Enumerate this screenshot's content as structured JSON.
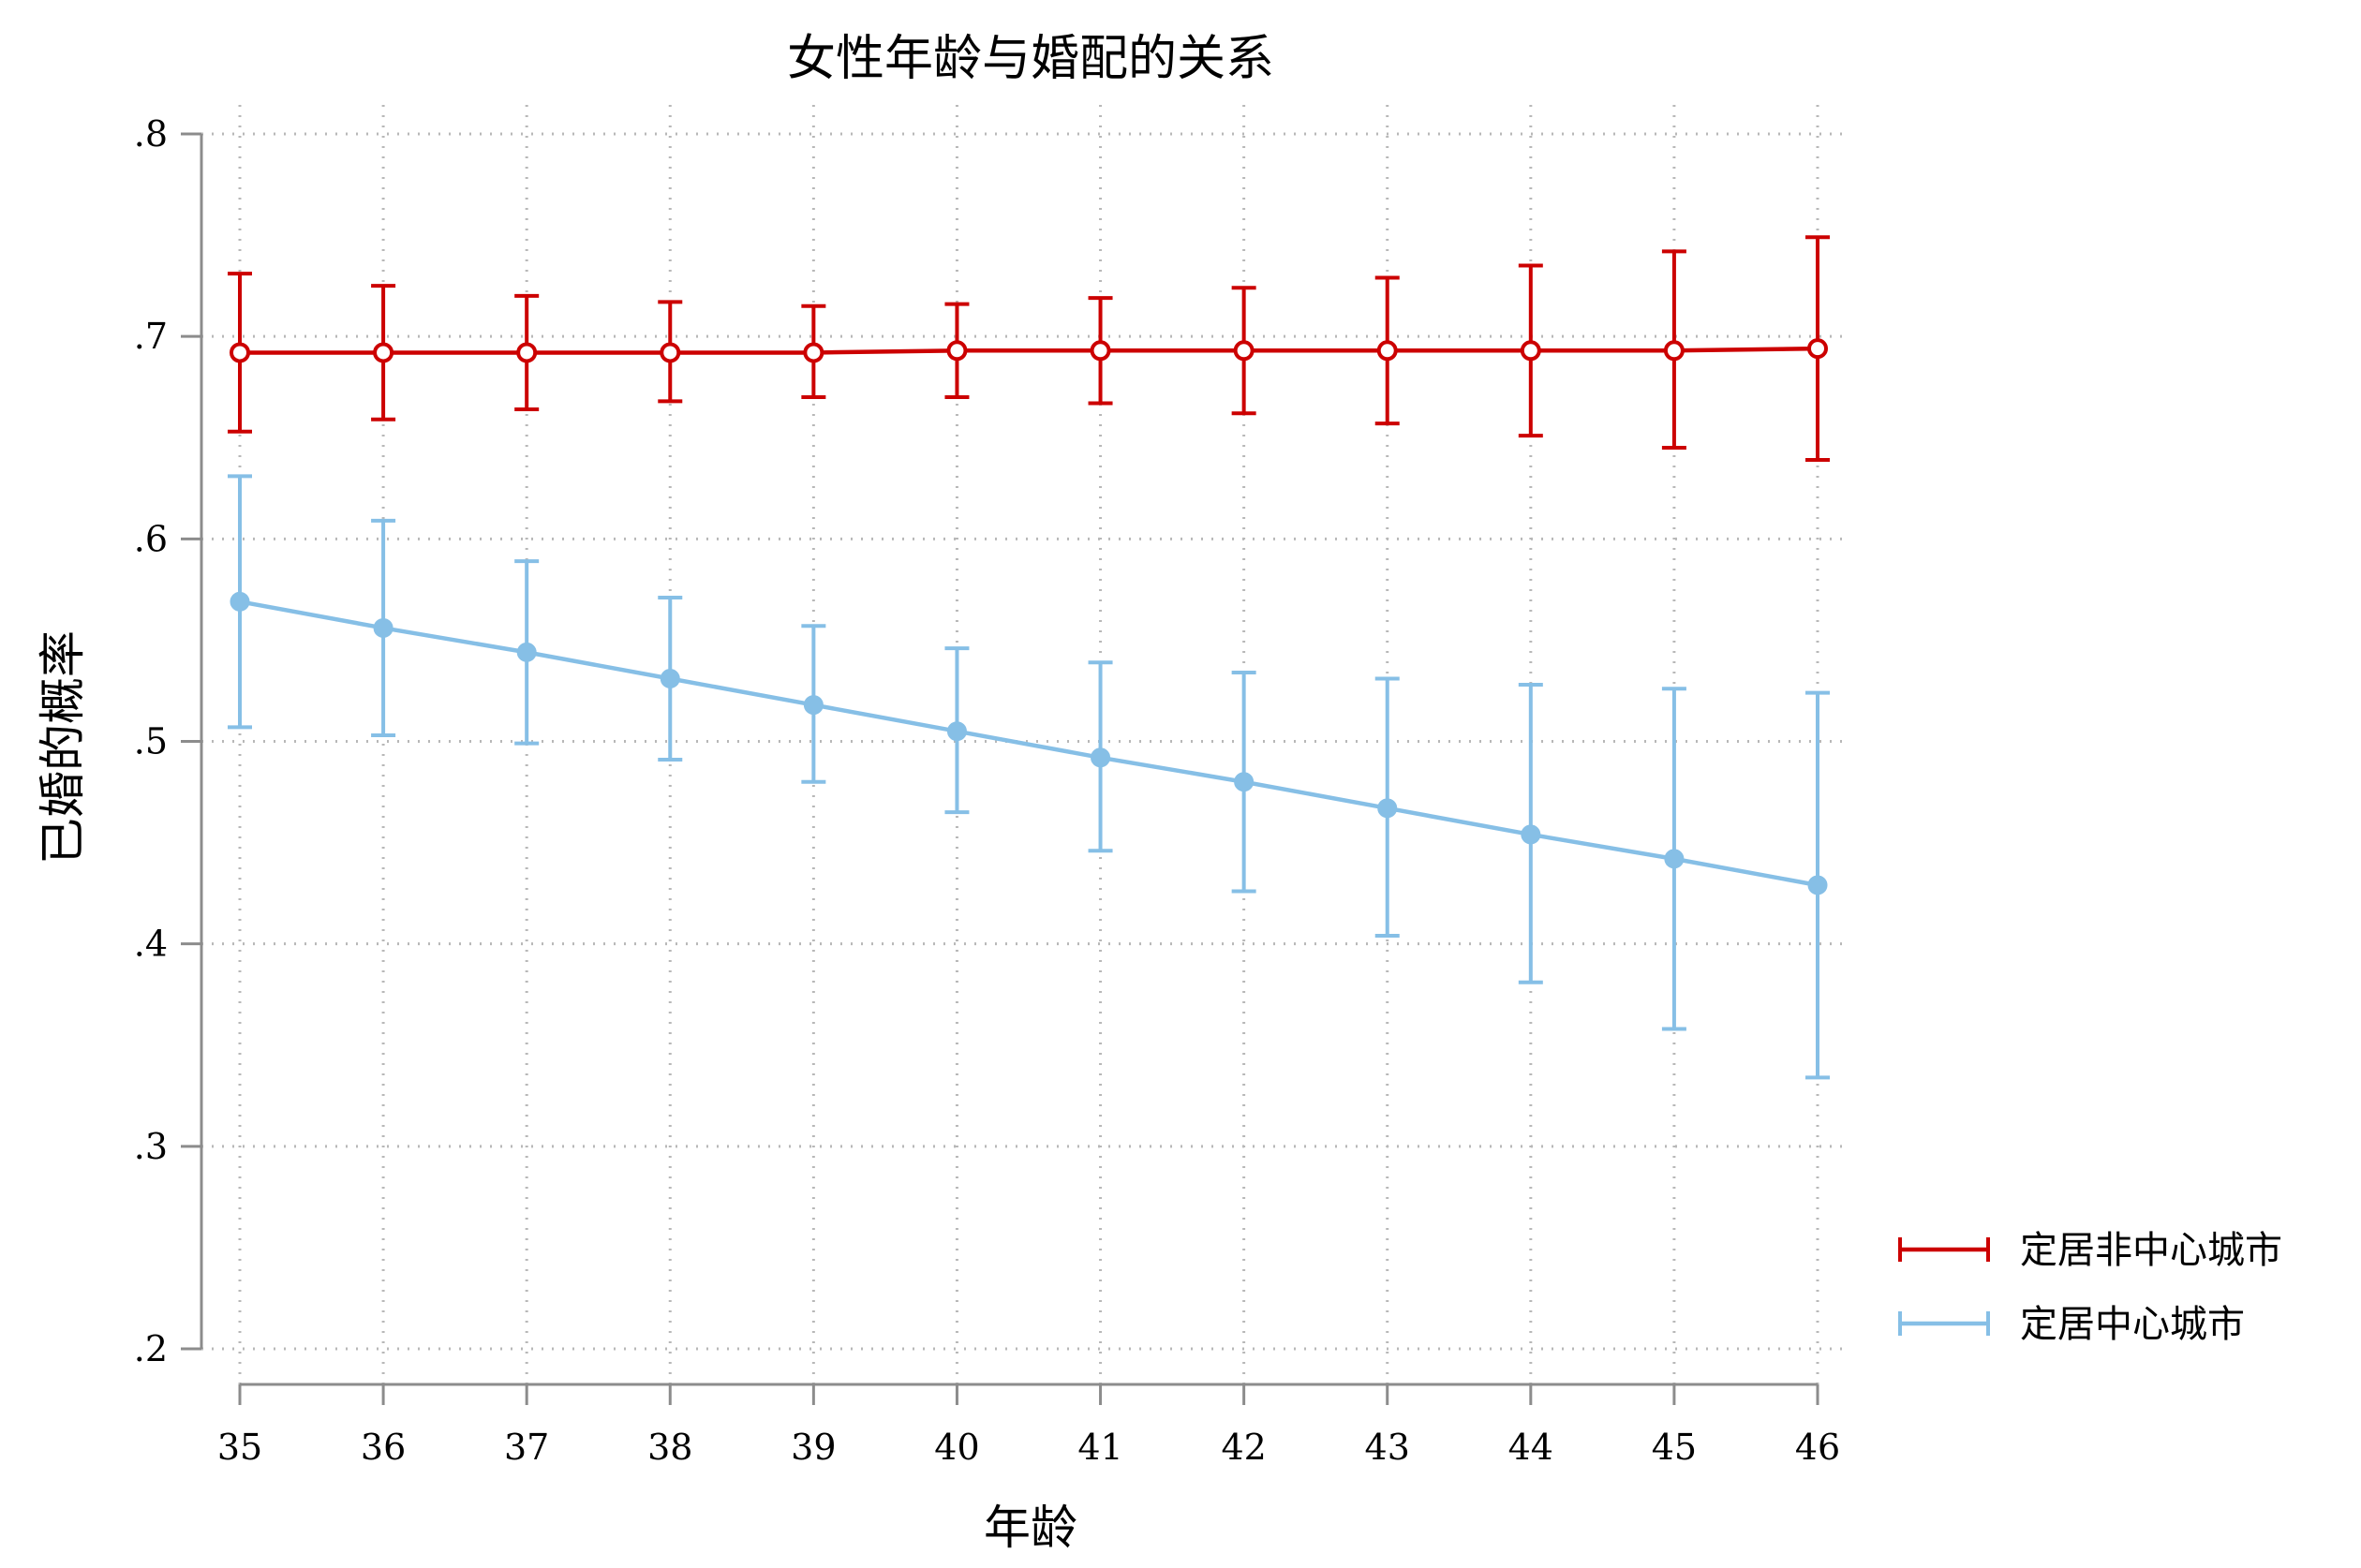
{
  "chart_data": {
    "type": "line",
    "title": "女性年龄与婚配的关系",
    "xlabel": "年龄",
    "ylabel": "已婚的概率",
    "x": [
      35,
      36,
      37,
      38,
      39,
      40,
      41,
      42,
      43,
      44,
      45,
      46
    ],
    "x_tick_labels": [
      "35",
      "36",
      "37",
      "38",
      "39",
      "40",
      "41",
      "42",
      "43",
      "44",
      "45",
      "46"
    ],
    "y_ticks": [
      0.2,
      0.3,
      0.4,
      0.5,
      0.6,
      0.7,
      0.8
    ],
    "y_tick_labels": [
      ".2",
      ".3",
      ".4",
      ".5",
      ".6",
      ".7",
      ".8"
    ],
    "xlim": [
      35,
      46
    ],
    "ylim": [
      0.2,
      0.8
    ],
    "grid": true,
    "legend_position": "right",
    "series": [
      {
        "name": "定居非中心城市",
        "color": "#cc0000",
        "marker": "hollow-circle",
        "values": [
          0.692,
          0.692,
          0.692,
          0.692,
          0.692,
          0.693,
          0.693,
          0.693,
          0.693,
          0.693,
          0.693,
          0.694
        ],
        "lower": [
          0.653,
          0.659,
          0.664,
          0.668,
          0.67,
          0.67,
          0.667,
          0.662,
          0.657,
          0.651,
          0.645,
          0.639
        ],
        "upper": [
          0.731,
          0.725,
          0.72,
          0.717,
          0.715,
          0.716,
          0.719,
          0.724,
          0.729,
          0.735,
          0.742,
          0.749
        ]
      },
      {
        "name": "定居中心城市",
        "color": "#86bfe6",
        "marker": "filled-circle",
        "values": [
          0.569,
          0.556,
          0.544,
          0.531,
          0.518,
          0.505,
          0.492,
          0.48,
          0.467,
          0.454,
          0.442,
          0.429
        ],
        "lower": [
          0.507,
          0.503,
          0.499,
          0.491,
          0.48,
          0.465,
          0.446,
          0.426,
          0.404,
          0.381,
          0.358,
          0.334
        ],
        "upper": [
          0.631,
          0.609,
          0.589,
          0.571,
          0.557,
          0.546,
          0.539,
          0.534,
          0.531,
          0.528,
          0.526,
          0.524
        ]
      }
    ]
  }
}
